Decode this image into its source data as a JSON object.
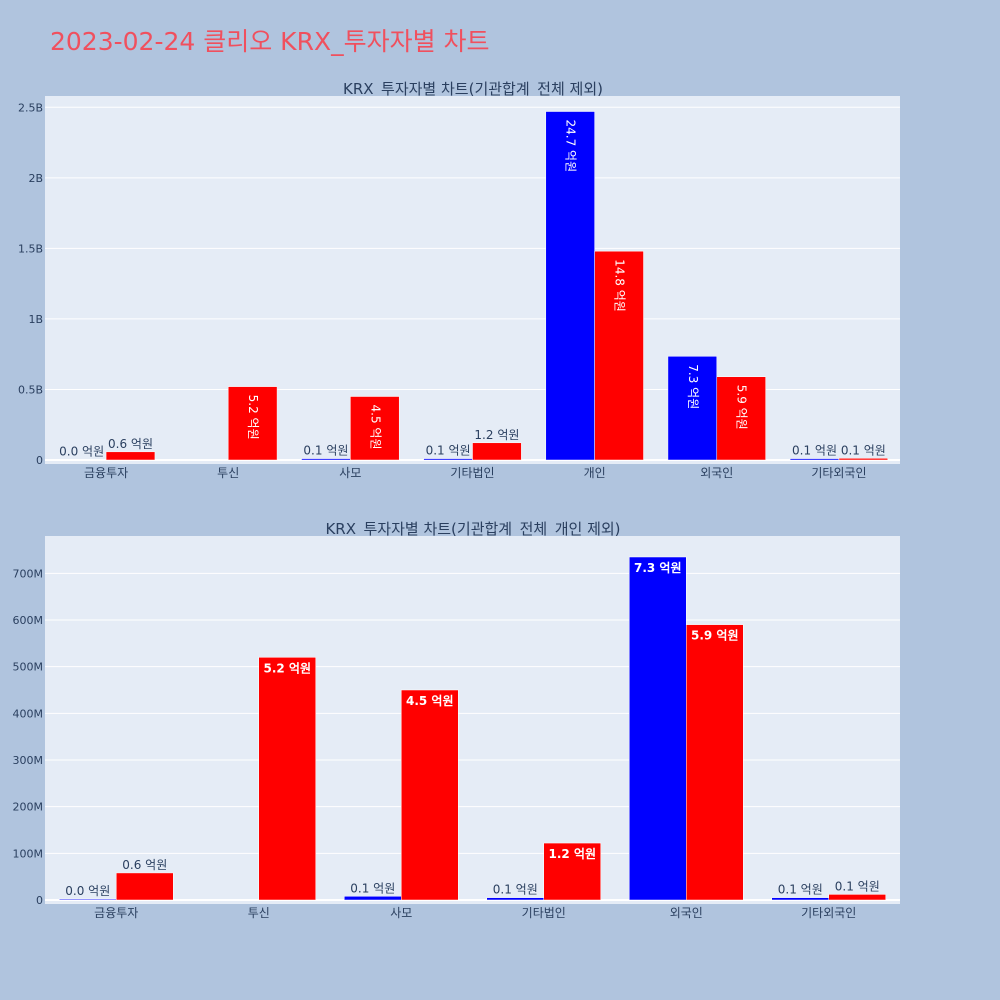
{
  "page": {
    "title": "2023-02-24 클리오 KRX_투자자별 차트"
  },
  "colors": {
    "buy": "#0000ff",
    "sell": "#ff0000",
    "plot_bg": "#e5ecf6",
    "page_bg": "#b0c4de",
    "title": "#f0505e",
    "text": "#2a3f5f"
  },
  "chart_data": [
    {
      "type": "bar",
      "title": "KRX_투자자별 차트(기관합계_전체 제외)",
      "categories": [
        "금융투자",
        "투신",
        "사모",
        "기타법인",
        "개인",
        "외국인",
        "기타외국인"
      ],
      "series": [
        {
          "color": "#0000ff",
          "values": [
            0.002,
            0,
            0.01,
            0.01,
            2.47,
            0.735,
            0.01
          ],
          "labels": [
            "0.0 억원",
            "",
            "0.1 억원",
            "0.1 억원",
            "24.7 억원",
            "7.3 억원",
            "0.1 억원"
          ]
        },
        {
          "color": "#ff0000",
          "values": [
            0.058,
            0.52,
            0.45,
            0.122,
            1.48,
            0.59,
            0.012
          ],
          "labels": [
            "0.6 억원",
            "5.2 억원",
            "4.5 억원",
            "1.2 억원",
            "14.8 억원",
            "5.9 억원",
            "0.1 억원"
          ]
        }
      ],
      "ylim": [
        0,
        2.58
      ],
      "yticks": [
        0,
        0.5,
        1,
        1.5,
        2,
        2.5
      ],
      "ytick_labels": [
        "0",
        "0.5B",
        "1B",
        "1.5B",
        "2B",
        "2.5B"
      ],
      "grid": true
    },
    {
      "type": "bar",
      "title": "KRX_투자자별 차트(기관합계_전체_개인 제외)",
      "categories": [
        "금융투자",
        "투신",
        "사모",
        "기타법인",
        "외국인",
        "기타외국인"
      ],
      "series": [
        {
          "color": "#0000ff",
          "values": [
            2,
            0,
            8,
            5,
            735,
            5
          ],
          "labels": [
            "0.0 억원",
            "",
            "0.1 억원",
            "0.1 억원",
            "7.3 억원",
            "0.1 억원"
          ]
        },
        {
          "color": "#ff0000",
          "values": [
            58,
            520,
            450,
            122,
            590,
            12
          ],
          "labels": [
            "0.6 억원",
            "5.2 억원",
            "4.5 억원",
            "1.2 억원",
            "5.9 억원",
            "0.1 억원"
          ]
        }
      ],
      "ylim": [
        0,
        780
      ],
      "yticks": [
        0,
        100,
        200,
        300,
        400,
        500,
        600,
        700
      ],
      "ytick_labels": [
        "0",
        "100M",
        "200M",
        "300M",
        "400M",
        "500M",
        "600M",
        "700M"
      ],
      "grid": true
    }
  ]
}
